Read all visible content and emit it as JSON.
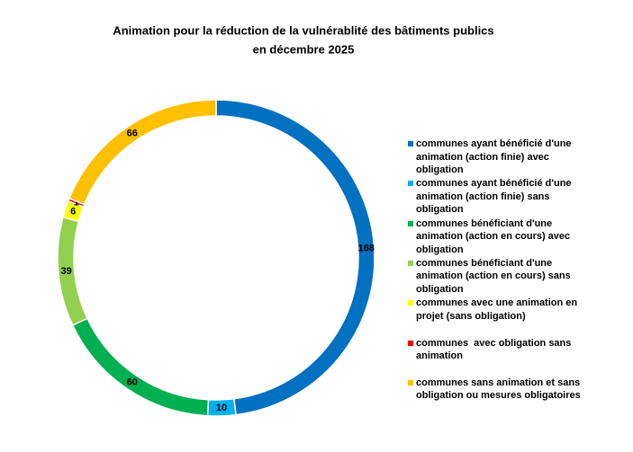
{
  "chart_data": {
    "type": "donut",
    "title": [
      "Animation pour la réduction de la vulnérablité des bâtiments publics",
      "en décembre 2025"
    ],
    "categories": [
      "communes ayant bénéficié d'une animation (action finie) avec obligation",
      "communes ayant bénéficié d'une animation (action finie) sans obligation",
      "communes bénéficiant d'une animation (action en cours) avec obligation",
      "communes bénéficiant d'une animation (action en cours) sans obligation",
      "communes avec une animation en projet (sans obligation)",
      "communes  avec obligation sans animation",
      "communes sans animation et sans obligation ou mesures obligatoires"
    ],
    "values": [
      168,
      10,
      60,
      39,
      6,
      1,
      66
    ],
    "colors": [
      "#0070C0",
      "#00B0F0",
      "#00B050",
      "#92D050",
      "#FFFF00",
      "#FF0000",
      "#FFC000"
    ],
    "legend": "right"
  }
}
